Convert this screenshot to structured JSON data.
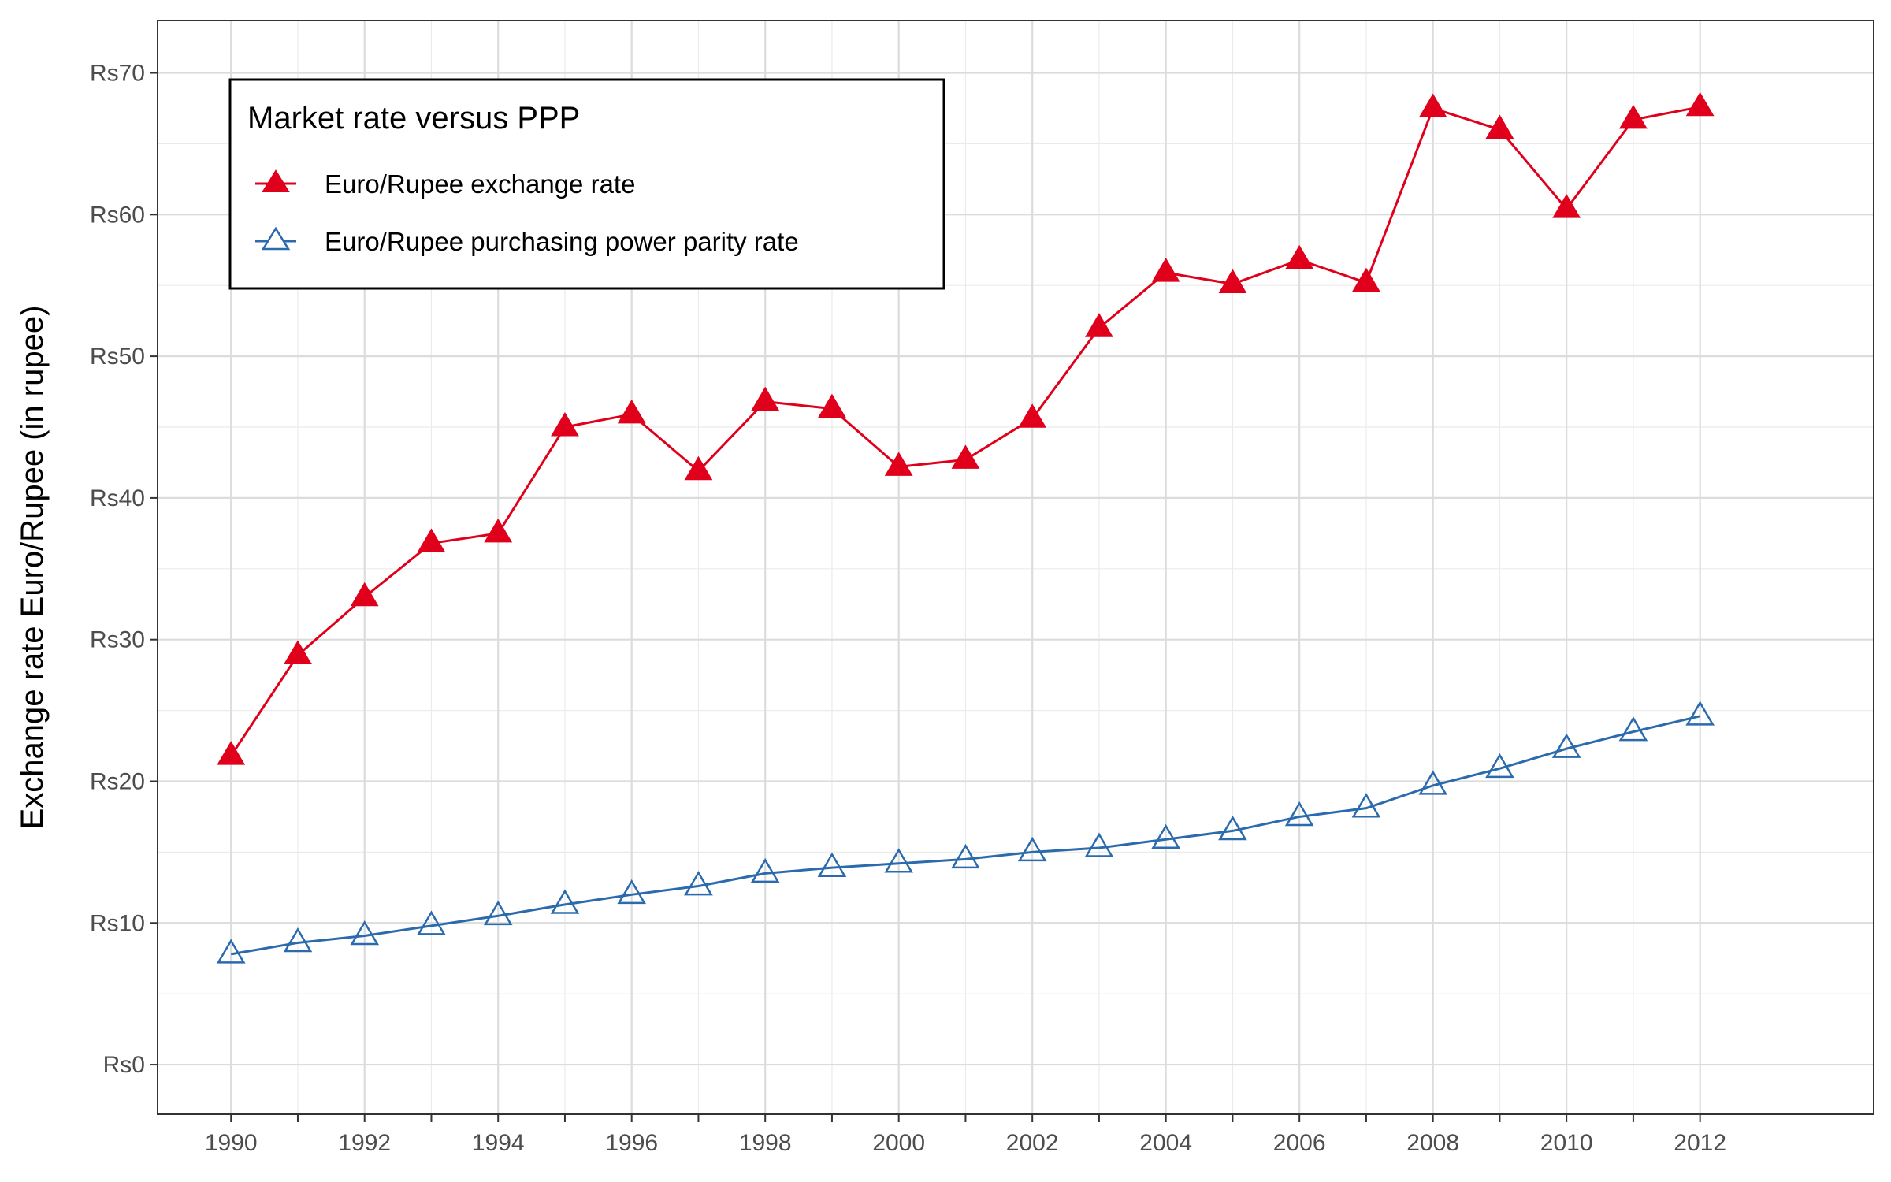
{
  "chart_data": {
    "type": "line",
    "title": "",
    "xlabel": "",
    "ylabel": "Exchange rate Euro/Rupee (in rupee)",
    "x": [
      1990,
      1991,
      1992,
      1993,
      1994,
      1995,
      1996,
      1997,
      1998,
      1999,
      2000,
      2001,
      2002,
      2003,
      2004,
      2005,
      2006,
      2007,
      2008,
      2009,
      2010,
      2011,
      2012
    ],
    "xticks": [
      "1990",
      "1992",
      "1994",
      "1996",
      "1998",
      "2000",
      "2002",
      "2004",
      "2006",
      "2008",
      "2010",
      "2012"
    ],
    "xtick_values": [
      1990,
      1992,
      1994,
      1996,
      1998,
      2000,
      2002,
      2004,
      2006,
      2008,
      2010,
      2012
    ],
    "yticks": [
      "Rs0",
      "Rs10",
      "Rs20",
      "Rs30",
      "Rs40",
      "Rs50",
      "Rs60",
      "Rs70"
    ],
    "ytick_values": [
      0,
      10,
      20,
      30,
      40,
      50,
      60,
      70
    ],
    "xlim": [
      1988.9,
      2014.6
    ],
    "ylim": [
      -3.5,
      73.7
    ],
    "grid": true,
    "legend": {
      "title": "Market rate versus PPP",
      "placement": "top-left"
    },
    "series": [
      {
        "name": "Euro/Rupee exchange rate",
        "color": "#e0001b",
        "marker": "filled-triangle",
        "values": [
          21.8,
          28.9,
          33.0,
          36.8,
          37.5,
          45.0,
          45.9,
          41.9,
          46.8,
          46.3,
          42.2,
          42.7,
          45.6,
          52.0,
          55.9,
          55.1,
          56.8,
          55.2,
          67.5,
          66.0,
          60.4,
          66.7,
          67.6
        ]
      },
      {
        "name": "Euro/Rupee purchasing power parity rate",
        "color": "#2b6aad",
        "marker": "open-triangle",
        "values": [
          7.8,
          8.6,
          9.1,
          9.8,
          10.5,
          11.3,
          12.0,
          12.6,
          13.5,
          13.9,
          14.2,
          14.5,
          15.0,
          15.3,
          15.9,
          16.5,
          17.5,
          18.1,
          19.7,
          20.9,
          22.3,
          23.5,
          24.6
        ]
      }
    ]
  }
}
